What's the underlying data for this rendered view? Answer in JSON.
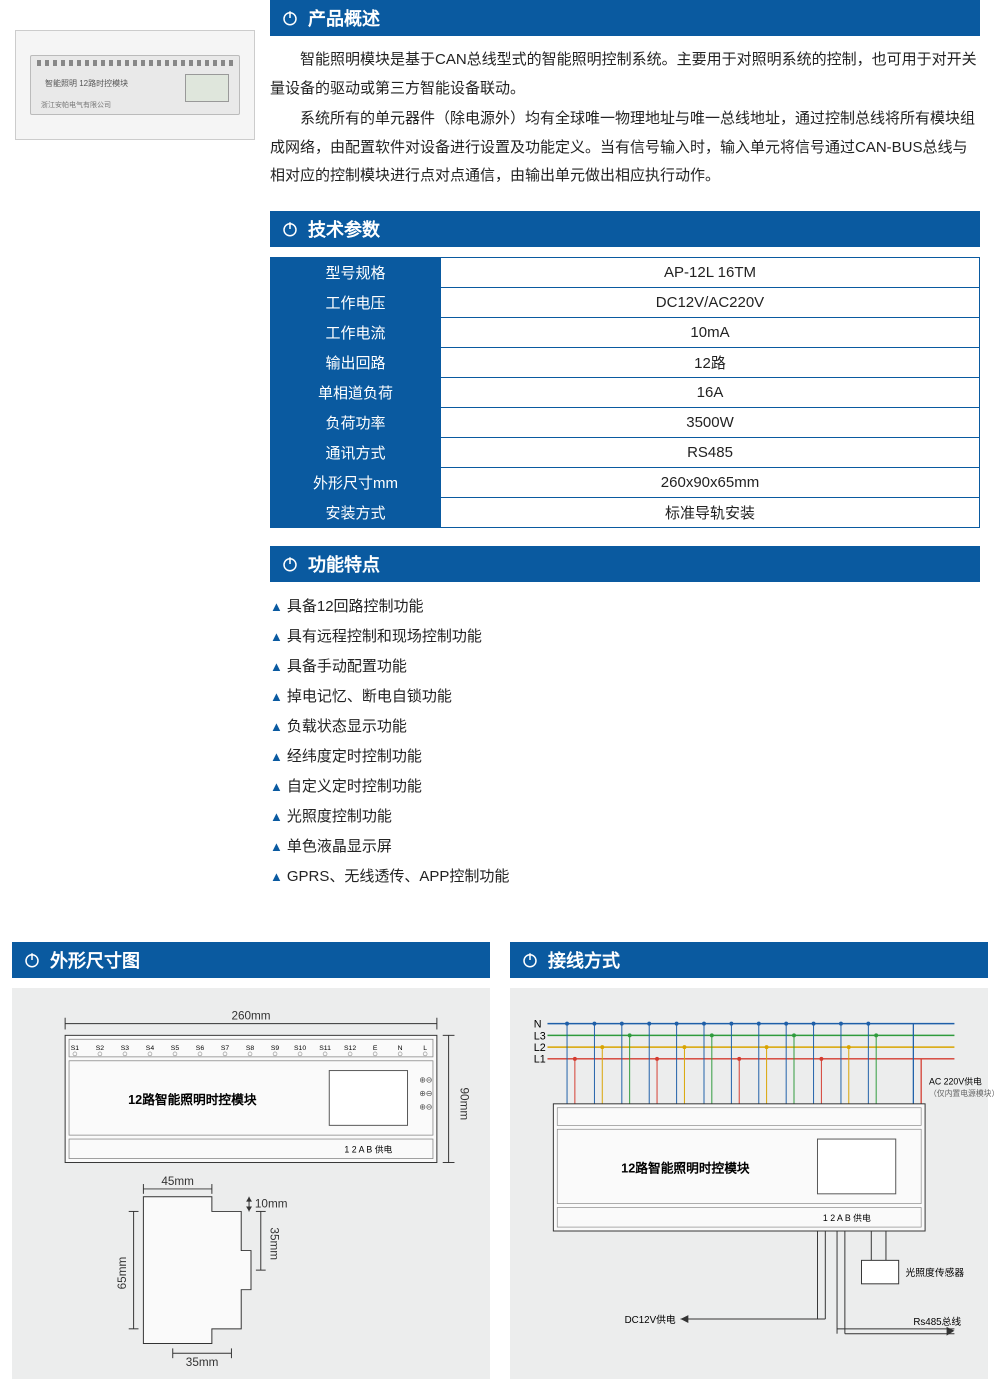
{
  "colors": {
    "header_bg": "#0a5aa0",
    "header_text": "#ffffff",
    "body_text": "#222222",
    "triangle": "#0a5aa0",
    "diagram_bg": "#eceded",
    "wire_red": "#d43b2f",
    "wire_yellow": "#d9a400",
    "wire_green": "#2e9b3c",
    "wire_blue": "#1e5fa8"
  },
  "sections": {
    "overview_title": "产品概述",
    "specs_title": "技术参数",
    "features_title": "功能特点",
    "dimension_title": "外形尺寸图",
    "wiring_title": "接线方式"
  },
  "overview": {
    "p1": "智能照明模块是基于CAN总线型式的智能照明控制系统。主要用于对照明系统的控制，也可用于对开关量设备的驱动或第三方智能设备联动。",
    "p2": "系统所有的单元器件（除电源外）均有全球唯一物理地址与唯一总线地址，通过控制总线将所有模块组成网络，由配置软件对设备进行设置及功能定义。当有信号输入时，输入单元将信号通过CAN-BUS总线与相对应的控制模块进行点对点通信，由输出单元做出相应执行动作。"
  },
  "specs": [
    {
      "label": "型号规格",
      "value": "AP-12L 16TM"
    },
    {
      "label": "工作电压",
      "value": "DC12V/AC220V"
    },
    {
      "label": "工作电流",
      "value": "10mA"
    },
    {
      "label": "输出回路",
      "value": "12路"
    },
    {
      "label": "单相道负荷",
      "value": "16A"
    },
    {
      "label": "负荷功率",
      "value": "3500W"
    },
    {
      "label": "通讯方式",
      "value": "RS485"
    },
    {
      "label": "外形尺寸mm",
      "value": "260x90x65mm"
    },
    {
      "label": "安装方式",
      "value": "标准导轨安装"
    }
  ],
  "features": [
    "具备12回路控制功能",
    "具有远程控制和现场控制功能",
    "具备手动配置功能",
    "掉电记忆、断电自锁功能",
    "负载状态显示功能",
    "经纬度定时控制功能",
    "自定义定时控制功能",
    "光照度控制功能",
    "单色液晶显示屏",
    "GPRS、无线透传、APP控制功能"
  ],
  "photo": {
    "device_label": "智能照明 12路时控模块",
    "brand": "浙江安帕电气有限公司"
  },
  "dimension_diagram": {
    "width_label": "260mm",
    "height_label": "90mm",
    "module_label": "12路智能照明时控模块",
    "terminals": [
      "S1",
      "S2",
      "S3",
      "S4",
      "S5",
      "S6",
      "S7",
      "S8",
      "S9",
      "S10",
      "S11",
      "S12",
      "E",
      "N",
      "L"
    ],
    "bottom_marks": "1 2 A B 供电",
    "side_w": "45mm",
    "side_top": "10mm",
    "side_depth": "65mm",
    "side_h1": "35mm",
    "side_h2": "35mm"
  },
  "wiring_diagram": {
    "phase_labels": [
      "N",
      "L3",
      "L2",
      "L1"
    ],
    "ac_label": "AC 220V供电\n（仅内置电源模块）",
    "module_label": "12路智能照明时控模块",
    "sensor_label": "光照度传感器",
    "dc_label": "DC12V供电",
    "rs485_label": "Rs485总线",
    "bottom_marks": "1 2 A B 供电"
  }
}
